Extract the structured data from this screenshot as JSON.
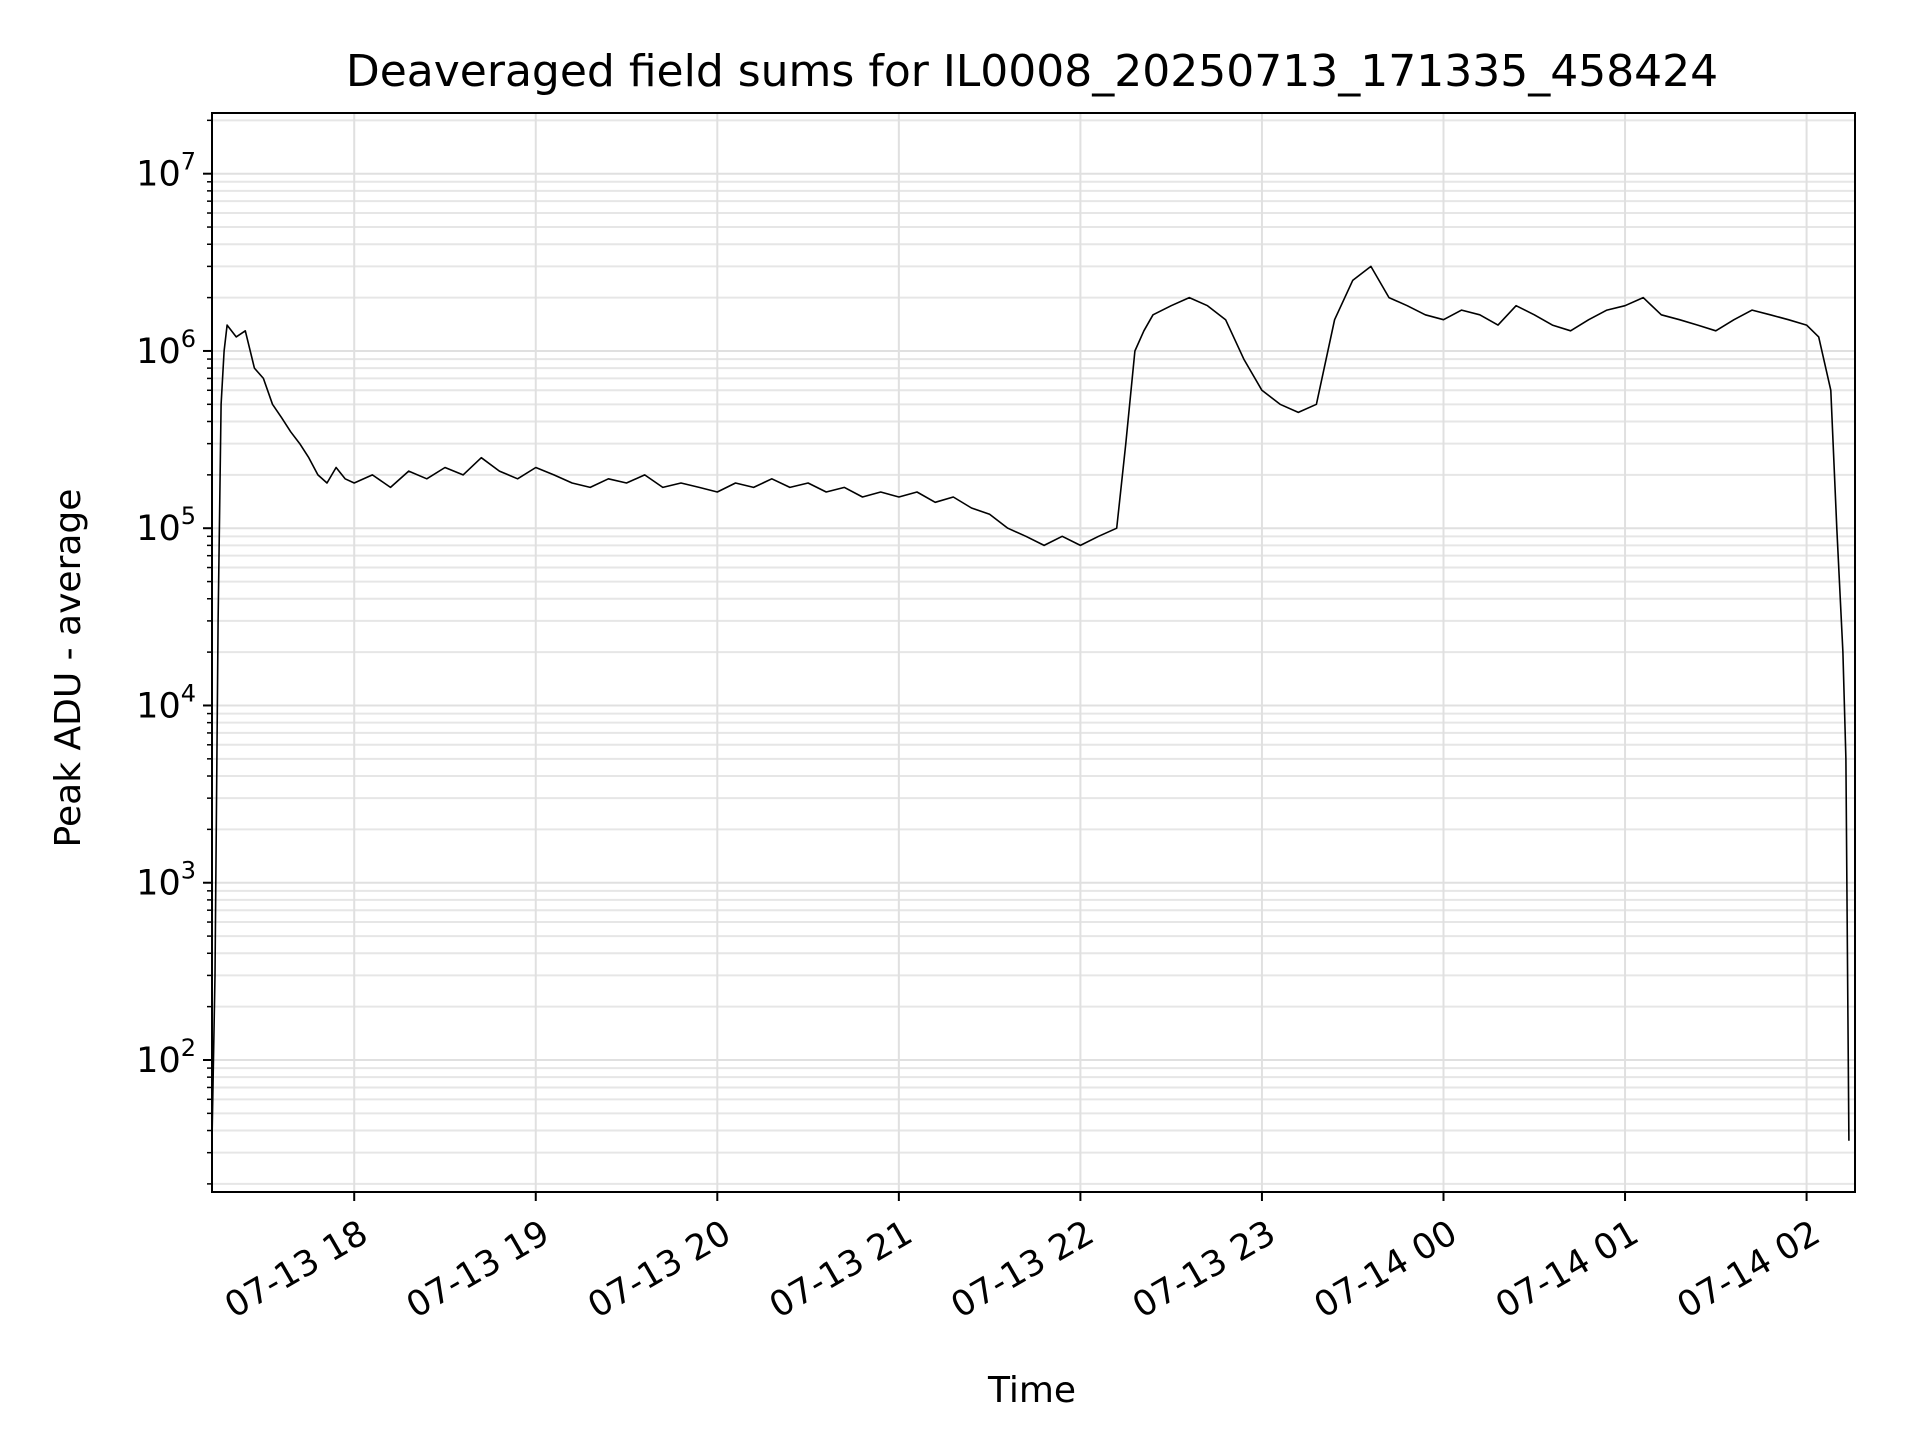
{
  "chart_data": {
    "type": "line",
    "title": "Deaveraged field sums for IL0008_20250713_171335_458424",
    "xlabel": "Time",
    "ylabel": "Peak ADU - average",
    "y_scale": "log",
    "ylim": [
      18,
      22000000
    ],
    "xlim": [
      "2025-07-13T17:13",
      "2025-07-14T02:16"
    ],
    "grid": true,
    "grid_minor": true,
    "line_color": "#000000",
    "x_ticks": [
      {
        "value": "2025-07-13T18:00",
        "label": "07-13 18"
      },
      {
        "value": "2025-07-13T19:00",
        "label": "07-13 19"
      },
      {
        "value": "2025-07-13T20:00",
        "label": "07-13 20"
      },
      {
        "value": "2025-07-13T21:00",
        "label": "07-13 21"
      },
      {
        "value": "2025-07-13T22:00",
        "label": "07-13 22"
      },
      {
        "value": "2025-07-13T23:00",
        "label": "07-13 23"
      },
      {
        "value": "2025-07-14T00:00",
        "label": "07-14 00"
      },
      {
        "value": "2025-07-14T01:00",
        "label": "07-14 01"
      },
      {
        "value": "2025-07-14T02:00",
        "label": "07-14 02"
      }
    ],
    "y_ticks": [
      {
        "value": 100,
        "base": "10",
        "exp": "2"
      },
      {
        "value": 1000,
        "base": "10",
        "exp": "3"
      },
      {
        "value": 10000,
        "base": "10",
        "exp": "4"
      },
      {
        "value": 100000,
        "base": "10",
        "exp": "5"
      },
      {
        "value": 1000000,
        "base": "10",
        "exp": "6"
      },
      {
        "value": 10000000,
        "base": "10",
        "exp": "7"
      }
    ],
    "series": [
      {
        "points": [
          [
            "2025-07-13T17:13",
            35
          ],
          [
            "2025-07-13T17:14",
            300
          ],
          [
            "2025-07-13T17:15",
            30000
          ],
          [
            "2025-07-13T17:16",
            500000
          ],
          [
            "2025-07-13T17:17",
            1000000
          ],
          [
            "2025-07-13T17:18",
            1400000
          ],
          [
            "2025-07-13T17:21",
            1200000
          ],
          [
            "2025-07-13T17:24",
            1300000
          ],
          [
            "2025-07-13T17:27",
            800000
          ],
          [
            "2025-07-13T17:30",
            700000
          ],
          [
            "2025-07-13T17:33",
            500000
          ],
          [
            "2025-07-13T17:36",
            420000
          ],
          [
            "2025-07-13T17:39",
            350000
          ],
          [
            "2025-07-13T17:42",
            300000
          ],
          [
            "2025-07-13T17:45",
            250000
          ],
          [
            "2025-07-13T17:48",
            200000
          ],
          [
            "2025-07-13T17:51",
            180000
          ],
          [
            "2025-07-13T17:54",
            220000
          ],
          [
            "2025-07-13T17:57",
            190000
          ],
          [
            "2025-07-13T18:00",
            180000
          ],
          [
            "2025-07-13T18:06",
            200000
          ],
          [
            "2025-07-13T18:12",
            170000
          ],
          [
            "2025-07-13T18:18",
            210000
          ],
          [
            "2025-07-13T18:24",
            190000
          ],
          [
            "2025-07-13T18:30",
            220000
          ],
          [
            "2025-07-13T18:36",
            200000
          ],
          [
            "2025-07-13T18:42",
            250000
          ],
          [
            "2025-07-13T18:48",
            210000
          ],
          [
            "2025-07-13T18:54",
            190000
          ],
          [
            "2025-07-13T19:00",
            220000
          ],
          [
            "2025-07-13T19:06",
            200000
          ],
          [
            "2025-07-13T19:12",
            180000
          ],
          [
            "2025-07-13T19:18",
            170000
          ],
          [
            "2025-07-13T19:24",
            190000
          ],
          [
            "2025-07-13T19:30",
            180000
          ],
          [
            "2025-07-13T19:36",
            200000
          ],
          [
            "2025-07-13T19:42",
            170000
          ],
          [
            "2025-07-13T19:48",
            180000
          ],
          [
            "2025-07-13T19:54",
            170000
          ],
          [
            "2025-07-13T20:00",
            160000
          ],
          [
            "2025-07-13T20:06",
            180000
          ],
          [
            "2025-07-13T20:12",
            170000
          ],
          [
            "2025-07-13T20:18",
            190000
          ],
          [
            "2025-07-13T20:24",
            170000
          ],
          [
            "2025-07-13T20:30",
            180000
          ],
          [
            "2025-07-13T20:36",
            160000
          ],
          [
            "2025-07-13T20:42",
            170000
          ],
          [
            "2025-07-13T20:48",
            150000
          ],
          [
            "2025-07-13T20:54",
            160000
          ],
          [
            "2025-07-13T21:00",
            150000
          ],
          [
            "2025-07-13T21:06",
            160000
          ],
          [
            "2025-07-13T21:12",
            140000
          ],
          [
            "2025-07-13T21:18",
            150000
          ],
          [
            "2025-07-13T21:24",
            130000
          ],
          [
            "2025-07-13T21:30",
            120000
          ],
          [
            "2025-07-13T21:36",
            100000
          ],
          [
            "2025-07-13T21:42",
            90000
          ],
          [
            "2025-07-13T21:48",
            80000
          ],
          [
            "2025-07-13T21:54",
            90000
          ],
          [
            "2025-07-13T22:00",
            80000
          ],
          [
            "2025-07-13T22:06",
            90000
          ],
          [
            "2025-07-13T22:12",
            100000
          ],
          [
            "2025-07-13T22:15",
            300000
          ],
          [
            "2025-07-13T22:18",
            1000000
          ],
          [
            "2025-07-13T22:21",
            1300000
          ],
          [
            "2025-07-13T22:24",
            1600000
          ],
          [
            "2025-07-13T22:30",
            1800000
          ],
          [
            "2025-07-13T22:36",
            2000000
          ],
          [
            "2025-07-13T22:42",
            1800000
          ],
          [
            "2025-07-13T22:48",
            1500000
          ],
          [
            "2025-07-13T22:54",
            900000
          ],
          [
            "2025-07-13T23:00",
            600000
          ],
          [
            "2025-07-13T23:06",
            500000
          ],
          [
            "2025-07-13T23:12",
            450000
          ],
          [
            "2025-07-13T23:18",
            500000
          ],
          [
            "2025-07-13T23:24",
            1500000
          ],
          [
            "2025-07-13T23:30",
            2500000
          ],
          [
            "2025-07-13T23:36",
            3000000
          ],
          [
            "2025-07-13T23:42",
            2000000
          ],
          [
            "2025-07-13T23:48",
            1800000
          ],
          [
            "2025-07-13T23:54",
            1600000
          ],
          [
            "2025-07-14T00:00",
            1500000
          ],
          [
            "2025-07-14T00:06",
            1700000
          ],
          [
            "2025-07-14T00:12",
            1600000
          ],
          [
            "2025-07-14T00:18",
            1400000
          ],
          [
            "2025-07-14T00:24",
            1800000
          ],
          [
            "2025-07-14T00:30",
            1600000
          ],
          [
            "2025-07-14T00:36",
            1400000
          ],
          [
            "2025-07-14T00:42",
            1300000
          ],
          [
            "2025-07-14T00:48",
            1500000
          ],
          [
            "2025-07-14T00:54",
            1700000
          ],
          [
            "2025-07-14T01:00",
            1800000
          ],
          [
            "2025-07-14T01:06",
            2000000
          ],
          [
            "2025-07-14T01:12",
            1600000
          ],
          [
            "2025-07-14T01:18",
            1500000
          ],
          [
            "2025-07-14T01:24",
            1400000
          ],
          [
            "2025-07-14T01:30",
            1300000
          ],
          [
            "2025-07-14T01:36",
            1500000
          ],
          [
            "2025-07-14T01:42",
            1700000
          ],
          [
            "2025-07-14T01:48",
            1600000
          ],
          [
            "2025-07-14T01:54",
            1500000
          ],
          [
            "2025-07-14T02:00",
            1400000
          ],
          [
            "2025-07-14T02:04",
            1200000
          ],
          [
            "2025-07-14T02:08",
            600000
          ],
          [
            "2025-07-14T02:10",
            100000
          ],
          [
            "2025-07-14T02:12",
            20000
          ],
          [
            "2025-07-14T02:13",
            5000
          ],
          [
            "2025-07-14T02:14",
            35
          ]
        ]
      }
    ]
  }
}
